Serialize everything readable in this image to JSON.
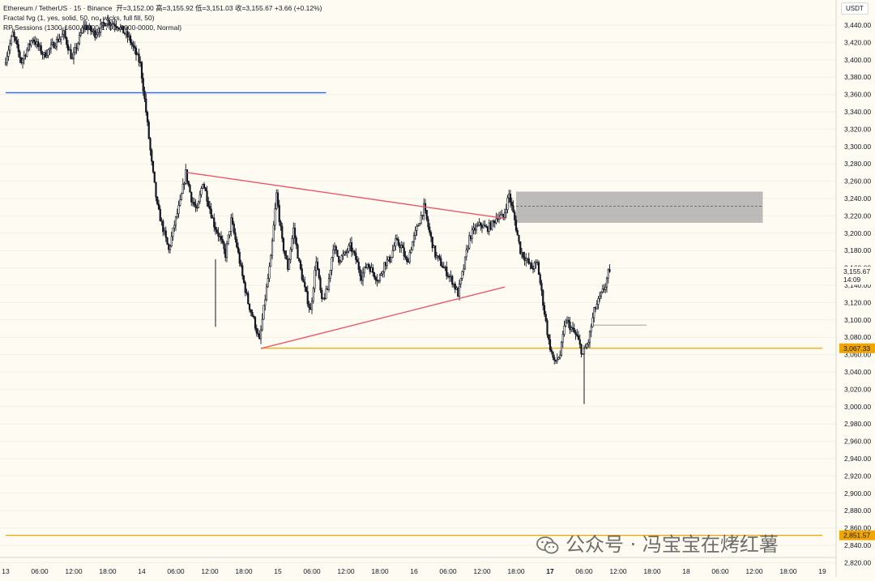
{
  "legend": {
    "symbol": "Ethereum / TetherUS · 15 · Binance",
    "ohlc": "开=3,152.00  高=3,155.92  低=3,151.03  收=3,155.67  +3.66 (+0.12%)",
    "indicator1": "Fractal fvg (1, yes, solid, 50, no, wicks, full fill, 50)",
    "indicator2": "RP Sessions (1300-1600, 0800-1700, 0000-0000, Normal)"
  },
  "currency_label": "USDT",
  "watermark": "公众号 · 冯宝宝在烤红薯",
  "colors": {
    "background": "#fefcf2",
    "candle": "#131722",
    "blue_line": "#2962ff",
    "orange_line": "#f0a500",
    "triangle": "#e85a6a",
    "zone": "#a5a5a5"
  },
  "chart_data": {
    "type": "candlestick",
    "title": "",
    "xlabel": "",
    "ylabel": "",
    "ylim": [
      2810,
      3455
    ],
    "y_ticks": [
      "3,440.00",
      "3,420.00",
      "3,400.00",
      "3,380.00",
      "3,360.00",
      "3,340.00",
      "3,320.00",
      "3,300.00",
      "3,280.00",
      "3,260.00",
      "3,240.00",
      "3,220.00",
      "3,200.00",
      "3,180.00",
      "3,160.00",
      "3,140.00",
      "3,120.00",
      "3,100.00",
      "3,080.00",
      "3,060.00",
      "3,040.00",
      "3,020.00",
      "3,000.00",
      "2,980.00",
      "2,960.00",
      "2,940.00",
      "2,920.00",
      "2,900.00",
      "2,880.00",
      "2,860.00",
      "2,840.00",
      "2,820.00"
    ],
    "x_ticks": [
      "13",
      "06:00",
      "12:00",
      "18:00",
      "14",
      "06:00",
      "12:00",
      "18:00",
      "15",
      "06:00",
      "12:00",
      "18:00",
      "16",
      "06:00",
      "12:00",
      "18:00",
      "17",
      "06:00",
      "12:00",
      "18:00",
      "18",
      "06:00",
      "12:00",
      "18:00",
      "19"
    ],
    "x_tick_units": [
      0,
      6,
      12,
      18,
      24,
      30,
      36,
      42,
      48,
      54,
      60,
      66,
      72,
      78,
      84,
      90,
      96,
      102,
      108,
      114,
      120,
      126,
      132,
      138,
      144
    ],
    "bold_x_ticks": [
      "17"
    ],
    "last_price": "3,155.67",
    "countdown": "14:09",
    "price_labels": [
      {
        "text": "3,067.33",
        "value": 3067.33,
        "color": "#f0a500"
      },
      {
        "text": "2,851.57",
        "value": 2851.57,
        "color": "#f0a500"
      }
    ],
    "horizontal_lines": [
      {
        "value": 3362,
        "from_h": 0,
        "to_h": 56.5,
        "color": "#2962ff"
      },
      {
        "value": 3067.33,
        "from_h": 45,
        "to_h": 144,
        "color": "#f0a500"
      },
      {
        "value": 2851.57,
        "from_h": 0,
        "to_h": 144,
        "color": "#f0a500"
      },
      {
        "value": 3094,
        "from_h": 103.5,
        "to_h": 113,
        "color": "#b0b0b0"
      }
    ],
    "trendlines": [
      {
        "points": [
          [
            32,
            3270
          ],
          [
            88,
            3217
          ]
        ],
        "color": "#e85a6a"
      },
      {
        "points": [
          [
            45,
            3067
          ],
          [
            88,
            3138
          ]
        ],
        "color": "#e85a6a"
      }
    ],
    "zones": [
      {
        "from_h": 90,
        "to_h": 133.5,
        "low": 3212,
        "high": 3248,
        "mid": 3231
      }
    ],
    "anchor_points": [
      [
        0,
        3395
      ],
      [
        1.5,
        3430
      ],
      [
        3,
        3398
      ],
      [
        5,
        3425
      ],
      [
        7,
        3405
      ],
      [
        9,
        3420
      ],
      [
        10.5,
        3430
      ],
      [
        12,
        3400
      ],
      [
        14,
        3440
      ],
      [
        16,
        3430
      ],
      [
        18,
        3445
      ],
      [
        20,
        3440
      ],
      [
        22,
        3425
      ],
      [
        24,
        3395
      ],
      [
        25,
        3340
      ],
      [
        26,
        3280
      ],
      [
        27,
        3230
      ],
      [
        28,
        3205
      ],
      [
        29,
        3180
      ],
      [
        30,
        3210
      ],
      [
        31,
        3235
      ],
      [
        32,
        3270
      ],
      [
        33,
        3240
      ],
      [
        34,
        3225
      ],
      [
        35,
        3260
      ],
      [
        36,
        3235
      ],
      [
        37,
        3210
      ],
      [
        38,
        3195
      ],
      [
        39,
        3175
      ],
      [
        40,
        3215
      ],
      [
        41,
        3185
      ],
      [
        42,
        3150
      ],
      [
        43,
        3120
      ],
      [
        44,
        3100
      ],
      [
        45,
        3075
      ],
      [
        46,
        3125
      ],
      [
        47,
        3170
      ],
      [
        48,
        3245
      ],
      [
        49,
        3190
      ],
      [
        50,
        3160
      ],
      [
        51,
        3205
      ],
      [
        52,
        3165
      ],
      [
        53,
        3135
      ],
      [
        54,
        3110
      ],
      [
        55,
        3170
      ],
      [
        56,
        3120
      ],
      [
        57,
        3135
      ],
      [
        58,
        3185
      ],
      [
        59,
        3170
      ],
      [
        60,
        3175
      ],
      [
        61,
        3185
      ],
      [
        62,
        3170
      ],
      [
        63,
        3150
      ],
      [
        64,
        3165
      ],
      [
        65,
        3155
      ],
      [
        66,
        3145
      ],
      [
        67,
        3165
      ],
      [
        68,
        3170
      ],
      [
        69,
        3190
      ],
      [
        70,
        3185
      ],
      [
        71,
        3165
      ],
      [
        72,
        3190
      ],
      [
        73,
        3210
      ],
      [
        74,
        3230
      ],
      [
        75,
        3200
      ],
      [
        76,
        3175
      ],
      [
        77,
        3165
      ],
      [
        78,
        3155
      ],
      [
        79,
        3145
      ],
      [
        80,
        3130
      ],
      [
        81,
        3160
      ],
      [
        82,
        3195
      ],
      [
        83,
        3205
      ],
      [
        84,
        3210
      ],
      [
        85,
        3205
      ],
      [
        86,
        3210
      ],
      [
        87,
        3220
      ],
      [
        88,
        3218
      ],
      [
        89,
        3245
      ],
      [
        90,
        3215
      ],
      [
        91,
        3180
      ],
      [
        92,
        3170
      ],
      [
        93,
        3160
      ],
      [
        94,
        3165
      ],
      [
        95,
        3120
      ],
      [
        96,
        3075
      ],
      [
        97,
        3050
      ],
      [
        98,
        3060
      ],
      [
        99,
        3100
      ],
      [
        100,
        3090
      ],
      [
        101,
        3080
      ],
      [
        102,
        3060
      ],
      [
        103,
        3075
      ],
      [
        104,
        3110
      ],
      [
        105,
        3125
      ],
      [
        106,
        3140
      ],
      [
        106.5,
        3154
      ]
    ]
  }
}
